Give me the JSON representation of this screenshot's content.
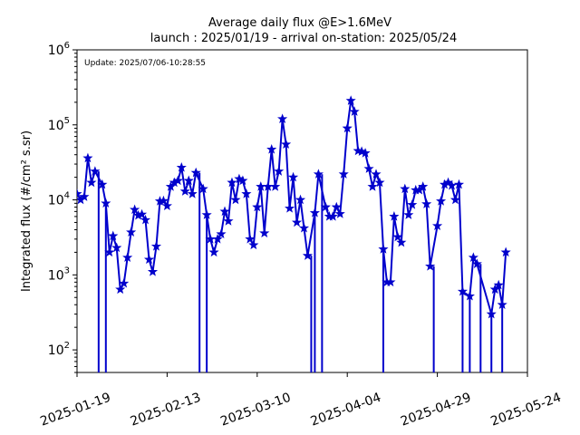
{
  "chart_data": {
    "type": "line",
    "title": "Average daily flux @E>1.6MeV",
    "subtitle": "launch : 2025/01/19 - arrival on-station: 2025/05/24",
    "update_note": "Update: 2025/07/06-10:28:55",
    "ylabel": "Integrated flux (#/cm² s.sr)",
    "xlabel": "",
    "yscale": "log",
    "ylim": [
      50,
      1000000
    ],
    "xlim": [
      "2025-01-19",
      "2025-05-24"
    ],
    "x_ticks": [
      "2025-01-19",
      "2025-02-13",
      "2025-03-10",
      "2025-04-04",
      "2025-04-29",
      "2025-05-24"
    ],
    "y_ticks": [
      {
        "value": 100,
        "base": "10",
        "exp": "2"
      },
      {
        "value": 1000,
        "base": "10",
        "exp": "3"
      },
      {
        "value": 10000,
        "base": "10",
        "exp": "4"
      },
      {
        "value": 100000,
        "base": "10",
        "exp": "5"
      },
      {
        "value": 1000000,
        "base": "10",
        "exp": "6"
      }
    ],
    "grid": false,
    "color": "#0000cc",
    "marker": "star",
    "series": [
      {
        "name": "",
        "points": [
          [
            "2025-01-19",
            12000
          ],
          [
            "2025-01-20",
            10000
          ],
          [
            "2025-01-21",
            11000
          ],
          [
            "2025-01-22",
            36000
          ],
          [
            "2025-01-23",
            17000
          ],
          [
            "2025-01-24",
            24000
          ],
          [
            "2025-01-26",
            16000
          ],
          [
            "2025-01-27",
            9000
          ],
          [
            "2025-01-28",
            2000
          ],
          [
            "2025-01-29",
            3300
          ],
          [
            "2025-01-30",
            2300
          ],
          [
            "2025-01-31",
            640
          ],
          [
            "2025-02-01",
            770
          ],
          [
            "2025-02-02",
            1700
          ],
          [
            "2025-02-03",
            3700
          ],
          [
            "2025-02-04",
            7400
          ],
          [
            "2025-02-05",
            6200
          ],
          [
            "2025-02-06",
            6400
          ],
          [
            "2025-02-07",
            5400
          ],
          [
            "2025-02-08",
            1600
          ],
          [
            "2025-02-09",
            1100
          ],
          [
            "2025-02-10",
            2400
          ],
          [
            "2025-02-11",
            9600
          ],
          [
            "2025-02-12",
            9700
          ],
          [
            "2025-02-13",
            8300
          ],
          [
            "2025-02-14",
            15000
          ],
          [
            "2025-02-15",
            17000
          ],
          [
            "2025-02-16",
            18000
          ],
          [
            "2025-02-17",
            27000
          ],
          [
            "2025-02-18",
            13000
          ],
          [
            "2025-02-19",
            18000
          ],
          [
            "2025-02-20",
            12000
          ],
          [
            "2025-02-21",
            23000
          ],
          [
            "2025-02-23",
            14000
          ],
          [
            "2025-02-24",
            6300
          ],
          [
            "2025-02-25",
            3000
          ],
          [
            "2025-02-26",
            2000
          ],
          [
            "2025-02-27",
            3000
          ],
          [
            "2025-02-28",
            3500
          ],
          [
            "2025-03-01",
            7000
          ],
          [
            "2025-03-02",
            5200
          ],
          [
            "2025-03-03",
            17000
          ],
          [
            "2025-03-04",
            10000
          ],
          [
            "2025-03-05",
            19000
          ],
          [
            "2025-03-06",
            18000
          ],
          [
            "2025-03-07",
            12000
          ],
          [
            "2025-03-08",
            3000
          ],
          [
            "2025-03-09",
            2500
          ],
          [
            "2025-03-10",
            8000
          ],
          [
            "2025-03-11",
            15000
          ],
          [
            "2025-03-12",
            3600
          ],
          [
            "2025-03-13",
            15000
          ],
          [
            "2025-03-14",
            47000
          ],
          [
            "2025-03-15",
            15000
          ],
          [
            "2025-03-16",
            24000
          ],
          [
            "2025-03-17",
            120000
          ],
          [
            "2025-03-18",
            55000
          ],
          [
            "2025-03-19",
            7700
          ],
          [
            "2025-03-20",
            20000
          ],
          [
            "2025-03-21",
            5000
          ],
          [
            "2025-03-22",
            10000
          ],
          [
            "2025-03-23",
            4200
          ],
          [
            "2025-03-24",
            1800
          ],
          [
            "2025-03-26",
            6700
          ],
          [
            "2025-03-27",
            22000
          ],
          [
            "2025-03-29",
            8000
          ],
          [
            "2025-03-30",
            6000
          ],
          [
            "2025-03-31",
            6000
          ],
          [
            "2025-04-01",
            8000
          ],
          [
            "2025-04-02",
            6500
          ],
          [
            "2025-04-03",
            22000
          ],
          [
            "2025-04-04",
            90000
          ],
          [
            "2025-04-05",
            210000
          ],
          [
            "2025-04-06",
            150000
          ],
          [
            "2025-04-07",
            45000
          ],
          [
            "2025-04-08",
            44000
          ],
          [
            "2025-04-09",
            42000
          ],
          [
            "2025-04-10",
            26000
          ],
          [
            "2025-04-11",
            15000
          ],
          [
            "2025-04-12",
            22000
          ],
          [
            "2025-04-13",
            17000
          ],
          [
            "2025-04-14",
            2200
          ],
          [
            "2025-04-15",
            800
          ],
          [
            "2025-04-16",
            800
          ],
          [
            "2025-04-17",
            6000
          ],
          [
            "2025-04-18",
            3200
          ],
          [
            "2025-04-19",
            2700
          ],
          [
            "2025-04-20",
            14000
          ],
          [
            "2025-04-21",
            6300
          ],
          [
            "2025-04-22",
            8600
          ],
          [
            "2025-04-23",
            13500
          ],
          [
            "2025-04-24",
            13500
          ],
          [
            "2025-04-25",
            15000
          ],
          [
            "2025-04-26",
            8800
          ],
          [
            "2025-04-27",
            1300
          ],
          [
            "2025-04-29",
            4500
          ],
          [
            "2025-04-30",
            9600
          ],
          [
            "2025-05-01",
            16000
          ],
          [
            "2025-05-02",
            17000
          ],
          [
            "2025-05-03",
            15500
          ],
          [
            "2025-05-04",
            10000
          ],
          [
            "2025-05-05",
            16000
          ],
          [
            "2025-05-06",
            600
          ],
          [
            "2025-05-08",
            520
          ],
          [
            "2025-05-09",
            1700
          ],
          [
            "2025-05-10",
            1400
          ],
          [
            "2025-05-14",
            300
          ],
          [
            "2025-05-15",
            640
          ],
          [
            "2025-05-16",
            730
          ],
          [
            "2025-05-17",
            400
          ],
          [
            "2025-05-18",
            2000
          ]
        ],
        "drops": [
          "2025-01-25",
          "2025-01-27",
          "2025-02-22",
          "2025-02-24",
          "2025-03-25",
          "2025-03-26",
          "2025-03-28",
          "2025-04-14",
          "2025-04-28",
          "2025-05-06",
          "2025-05-08",
          "2025-05-11",
          "2025-05-14",
          "2025-05-17"
        ]
      }
    ]
  }
}
